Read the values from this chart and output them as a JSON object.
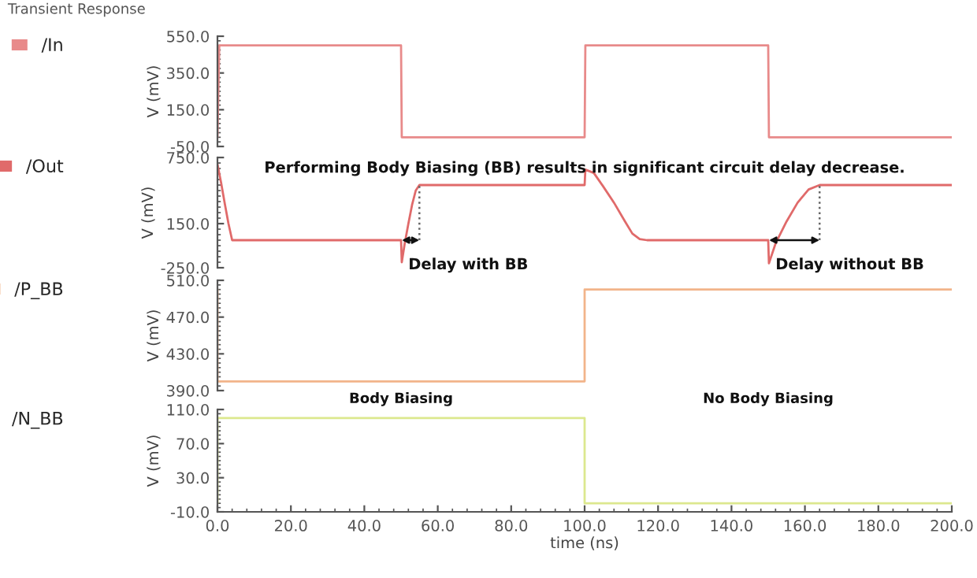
{
  "chart_data": [
    {
      "type": "line",
      "title": "Transient Response",
      "ylabel": "V (mV)",
      "legend": "left",
      "tick_labels": "y",
      "xlim": [
        0,
        200
      ],
      "ylim": [
        -50,
        550
      ],
      "yticks": [
        {
          "value": -50,
          "label": "-50.0"
        },
        {
          "value": 150,
          "label": "150.0"
        },
        {
          "value": 350,
          "label": "350.0"
        },
        {
          "value": 550,
          "label": "550.0"
        }
      ],
      "series": [
        {
          "name": "/In",
          "color": "#e88a8a",
          "x": [
            0,
            0.5,
            50,
            50.2,
            100,
            100.2,
            150,
            150.2,
            200
          ],
          "values": [
            0,
            500,
            500,
            0,
            0,
            500,
            500,
            0,
            0
          ]
        }
      ]
    },
    {
      "type": "line",
      "ylabel": "V (mV)",
      "legend": "left",
      "tick_labels": "y",
      "xlim": [
        0,
        200
      ],
      "ylim": [
        -250,
        750
      ],
      "yticks": [
        {
          "value": -250,
          "label": "-250.0"
        },
        {
          "value": 150,
          "label": "150.0"
        },
        {
          "value": 750,
          "label": "750.0"
        }
      ],
      "annotations": [
        "Performing Body Biasing (BB) results in significant circuit delay decrease.",
        {
          "text": "Delay with BB",
          "x": 55,
          "y": 500
        },
        {
          "text": "Delay without BB",
          "x": 164,
          "y": 500
        }
      ],
      "series": [
        {
          "name": "/Out",
          "color": "#e06a6a",
          "x": [
            0,
            1,
            2,
            3,
            4,
            50,
            50.2,
            51,
            52,
            53,
            54,
            55,
            100,
            100.2,
            102.5,
            105,
            108,
            111,
            113,
            115,
            117,
            150,
            150.2,
            152,
            155,
            158,
            161,
            164,
            200
          ],
          "values": [
            690,
            520,
            330,
            150,
            0,
            0,
            -200,
            -30,
            150,
            320,
            450,
            500,
            500,
            640,
            610,
            490,
            340,
            170,
            60,
            10,
            0,
            0,
            -210,
            -30,
            170,
            340,
            460,
            500,
            500
          ]
        }
      ]
    },
    {
      "type": "line",
      "ylabel": "V (mV)",
      "legend": "left",
      "tick_labels": "y",
      "xlim": [
        0,
        200
      ],
      "ylim": [
        390,
        510
      ],
      "yticks": [
        {
          "value": 390,
          "label": "390.0"
        },
        {
          "value": 430,
          "label": "430.0"
        },
        {
          "value": 470,
          "label": "470.0"
        },
        {
          "value": 510,
          "label": "510.0"
        }
      ],
      "annotations": [
        "Body Biasing",
        "No Body Biasing"
      ],
      "series": [
        {
          "name": "/P_BB",
          "color": "#f2b48a",
          "x": [
            0,
            0,
            100,
            100,
            200
          ],
          "values": [
            500,
            400,
            400,
            500,
            500
          ]
        }
      ]
    },
    {
      "type": "line",
      "xlabel": "time (ns)",
      "ylabel": "V (mV)",
      "legend": "left",
      "xlim": [
        0,
        200
      ],
      "xticks": [
        {
          "value": 0,
          "label": "0.0"
        },
        {
          "value": 20,
          "label": "20.0"
        },
        {
          "value": 40,
          "label": "40.0"
        },
        {
          "value": 60,
          "label": "60.0"
        },
        {
          "value": 80,
          "label": "80.0"
        },
        {
          "value": 100,
          "label": "100.0"
        },
        {
          "value": 120,
          "label": "120.0"
        },
        {
          "value": 140,
          "label": "140.0"
        },
        {
          "value": 160,
          "label": "160.0"
        },
        {
          "value": 180,
          "label": "180.0"
        },
        {
          "value": 200,
          "label": "200.0"
        }
      ],
      "ylim": [
        -10,
        110
      ],
      "yticks": [
        {
          "value": -10,
          "label": "-10.0"
        },
        {
          "value": 30,
          "label": "30.0"
        },
        {
          "value": 70,
          "label": "70.0"
        },
        {
          "value": 110,
          "label": "110.0"
        }
      ],
      "series": [
        {
          "name": "/N_BB",
          "color": "#dce88e",
          "x": [
            0,
            0,
            100,
            100,
            200
          ],
          "values": [
            0,
            100,
            100,
            0,
            0
          ]
        }
      ]
    }
  ]
}
